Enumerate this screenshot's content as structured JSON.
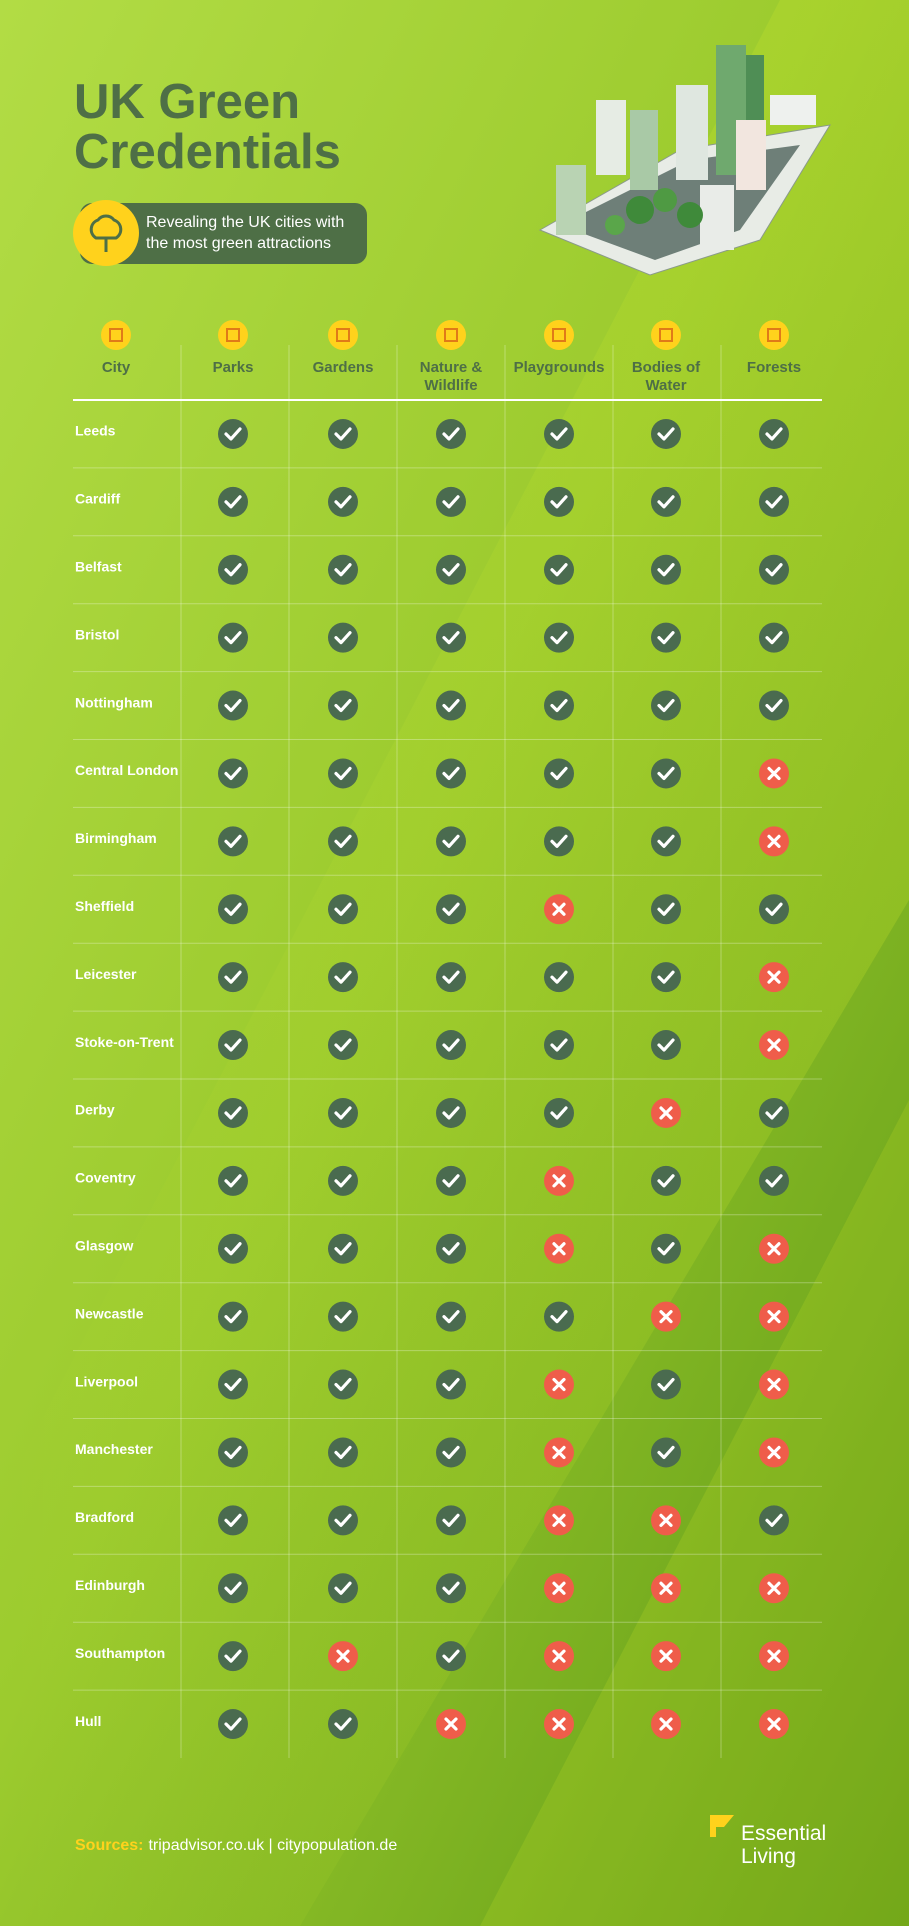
{
  "header": {
    "title_line1": "UK Green",
    "title_line2": "Credentials",
    "subtitle_line1": "Revealing the UK cities with",
    "subtitle_line2": "the most green attractions"
  },
  "table": {
    "columns": [
      [
        "City"
      ],
      [
        "Parks"
      ],
      [
        "Gardens"
      ],
      [
        "Nature &",
        "Wildlife"
      ],
      [
        "Playgrounds"
      ],
      [
        "Bodies of",
        "Water"
      ],
      [
        "Forests"
      ]
    ],
    "rows": [
      {
        "city": "Leeds",
        "values": [
          true,
          true,
          true,
          true,
          true,
          true
        ]
      },
      {
        "city": "Cardiff",
        "values": [
          true,
          true,
          true,
          true,
          true,
          true
        ]
      },
      {
        "city": "Belfast",
        "values": [
          true,
          true,
          true,
          true,
          true,
          true
        ]
      },
      {
        "city": "Bristol",
        "values": [
          true,
          true,
          true,
          true,
          true,
          true
        ]
      },
      {
        "city": "Nottingham",
        "values": [
          true,
          true,
          true,
          true,
          true,
          true
        ]
      },
      {
        "city": "Central London",
        "values": [
          true,
          true,
          true,
          true,
          true,
          false
        ]
      },
      {
        "city": "Birmingham",
        "values": [
          true,
          true,
          true,
          true,
          true,
          false
        ]
      },
      {
        "city": "Sheffield",
        "values": [
          true,
          true,
          true,
          false,
          true,
          true
        ]
      },
      {
        "city": "Leicester",
        "values": [
          true,
          true,
          true,
          true,
          true,
          false
        ]
      },
      {
        "city": "Stoke-on-Trent",
        "values": [
          true,
          true,
          true,
          true,
          true,
          false
        ]
      },
      {
        "city": "Derby",
        "values": [
          true,
          true,
          true,
          true,
          false,
          true
        ]
      },
      {
        "city": "Coventry",
        "values": [
          true,
          true,
          true,
          false,
          true,
          true
        ]
      },
      {
        "city": "Glasgow",
        "values": [
          true,
          true,
          true,
          false,
          true,
          false
        ]
      },
      {
        "city": "Newcastle",
        "values": [
          true,
          true,
          true,
          true,
          false,
          false
        ]
      },
      {
        "city": "Liverpool",
        "values": [
          true,
          true,
          true,
          false,
          true,
          false
        ]
      },
      {
        "city": "Manchester",
        "values": [
          true,
          true,
          true,
          false,
          true,
          false
        ]
      },
      {
        "city": "Bradford",
        "values": [
          true,
          true,
          true,
          false,
          false,
          true
        ]
      },
      {
        "city": "Edinburgh",
        "values": [
          true,
          true,
          true,
          false,
          false,
          false
        ]
      },
      {
        "city": "Southampton",
        "values": [
          true,
          false,
          true,
          false,
          false,
          false
        ]
      },
      {
        "city": "Hull",
        "values": [
          true,
          true,
          false,
          false,
          false,
          false
        ]
      }
    ]
  },
  "footer": {
    "sources_label": "Sources:",
    "sources": "tripadvisor.co.uk | citypopulation.de",
    "logo_line1": "Essential",
    "logo_line2": "Living"
  }
}
